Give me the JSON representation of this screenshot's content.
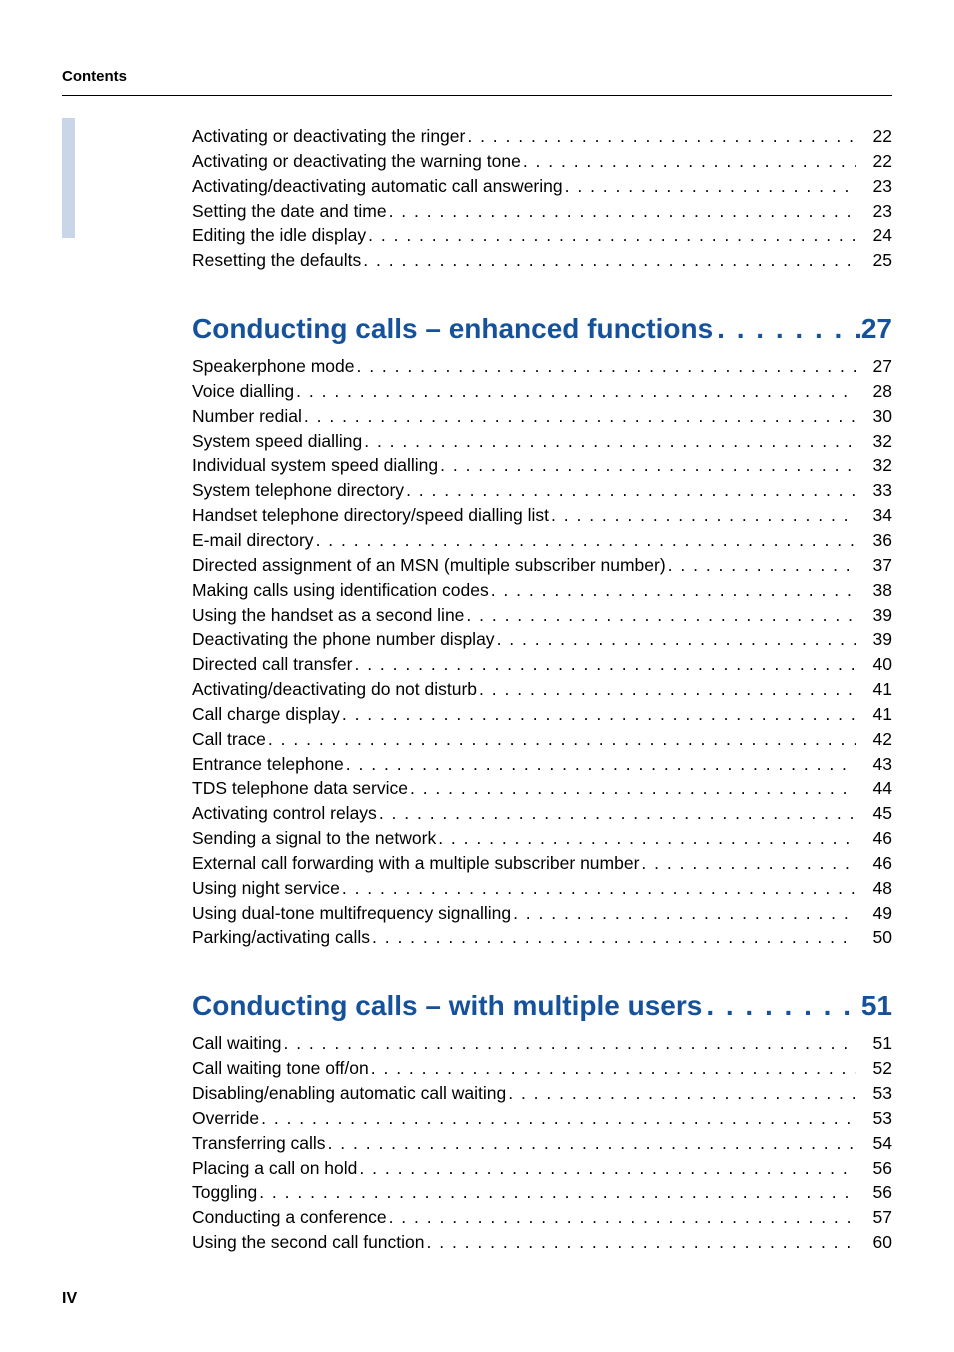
{
  "header": {
    "label": "Contents"
  },
  "colors": {
    "heading": "#16529b",
    "sidebar": "#c9d5e8",
    "text": "#000000",
    "background": "#ffffff",
    "rule": "#000000"
  },
  "typography": {
    "body_fontsize_pt": 13,
    "heading_fontsize_pt": 21,
    "label_fontsize_pt": 11,
    "font_family": "Arial"
  },
  "page_footer": {
    "number": "IV"
  },
  "blocks": [
    {
      "heading": null,
      "heading_page": null,
      "entries": [
        {
          "label": "Activating or deactivating the ringer",
          "page": "22"
        },
        {
          "label": "Activating or deactivating the warning tone",
          "page": "22"
        },
        {
          "label": "Activating/deactivating automatic call answering",
          "page": "23"
        },
        {
          "label": "Setting the date and time",
          "page": "23"
        },
        {
          "label": "Editing the idle display",
          "page": "24"
        },
        {
          "label": "Resetting the defaults",
          "page": "25"
        }
      ]
    },
    {
      "heading": "Conducting calls – enhanced functions",
      "heading_page": "27",
      "entries": [
        {
          "label": "Speakerphone mode",
          "page": "27"
        },
        {
          "label": "Voice dialling",
          "page": "28"
        },
        {
          "label": "Number redial",
          "page": "30"
        },
        {
          "label": "System speed dialling",
          "page": "32"
        },
        {
          "label": "Individual system speed dialling",
          "page": "32"
        },
        {
          "label": "System telephone directory",
          "page": "33"
        },
        {
          "label": "Handset telephone directory/speed dialling list",
          "page": "34"
        },
        {
          "label": "E-mail directory",
          "page": "36"
        },
        {
          "label": "Directed assignment of an MSN (multiple subscriber number)",
          "page": "37"
        },
        {
          "label": "Making calls using identification codes",
          "page": "38"
        },
        {
          "label": "Using the handset as a second line",
          "page": "39"
        },
        {
          "label": "Deactivating the phone number display",
          "page": "39"
        },
        {
          "label": "Directed call transfer",
          "page": "40"
        },
        {
          "label": "Activating/deactivating do not disturb",
          "page": "41"
        },
        {
          "label": "Call charge display",
          "page": "41"
        },
        {
          "label": "Call trace",
          "page": "42"
        },
        {
          "label": "Entrance telephone",
          "page": "43"
        },
        {
          "label": "TDS telephone data service",
          "page": "44"
        },
        {
          "label": "Activating control relays",
          "page": "45"
        },
        {
          "label": "Sending a signal to the network",
          "page": "46"
        },
        {
          "label": "External call forwarding with a multiple subscriber number",
          "page": "46"
        },
        {
          "label": "Using night service",
          "page": "48"
        },
        {
          "label": "Using dual-tone multifrequency signalling",
          "page": "49"
        },
        {
          "label": "Parking/activating calls",
          "page": "50"
        }
      ]
    },
    {
      "heading": "Conducting calls – with multiple users",
      "heading_page": "51",
      "entries": [
        {
          "label": "Call waiting",
          "page": "51"
        },
        {
          "label": "Call waiting tone off/on",
          "page": "52"
        },
        {
          "label": "Disabling/enabling automatic call waiting",
          "page": "53"
        },
        {
          "label": "Override",
          "page": "53"
        },
        {
          "label": "Transferring calls",
          "page": "54"
        },
        {
          "label": "Placing a call on hold",
          "page": "56"
        },
        {
          "label": "Toggling",
          "page": "56"
        },
        {
          "label": "Conducting a conference",
          "page": "57"
        },
        {
          "label": "Using the second call function",
          "page": "60"
        }
      ]
    }
  ]
}
